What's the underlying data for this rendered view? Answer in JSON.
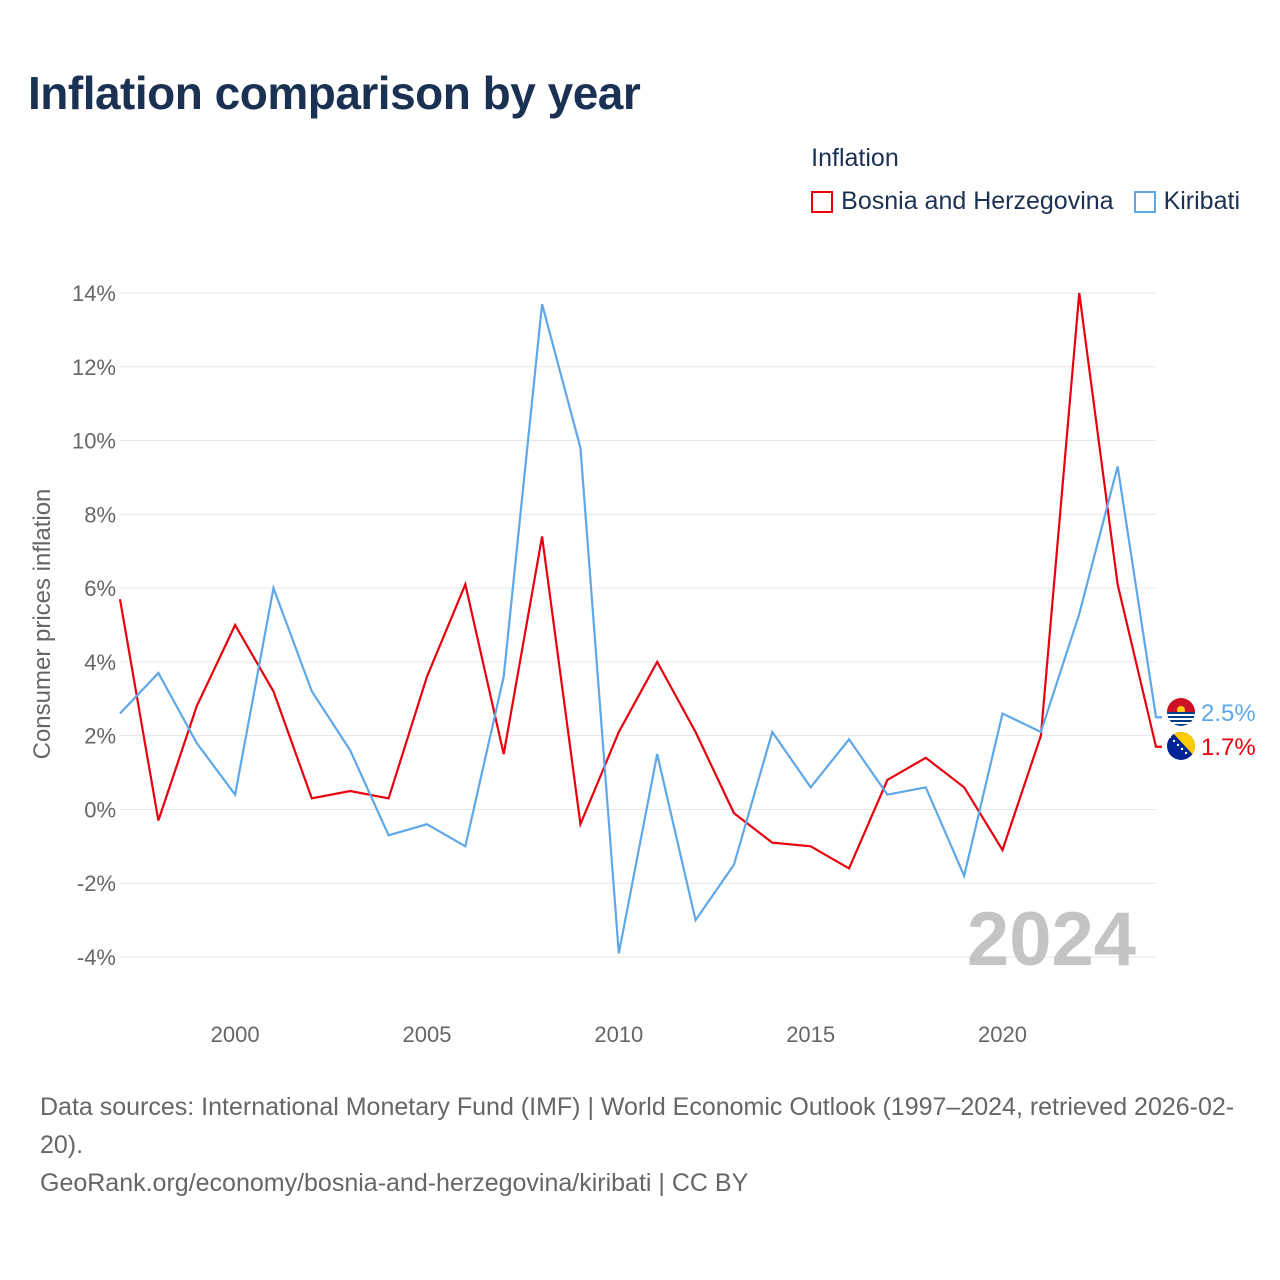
{
  "title": "Inflation comparison by year",
  "legend": {
    "title": "Inflation",
    "items": [
      {
        "label": "Bosnia and Herzegovina",
        "color": "#e8000d"
      },
      {
        "label": "Kiribati",
        "color": "#5fa8e8"
      }
    ]
  },
  "chart_data": {
    "type": "line",
    "title": "Inflation comparison by year",
    "xlabel": "",
    "ylabel": "Consumer prices inflation",
    "x": [
      1997,
      1998,
      1999,
      2000,
      2001,
      2002,
      2003,
      2004,
      2005,
      2006,
      2007,
      2008,
      2009,
      2010,
      2011,
      2012,
      2013,
      2014,
      2015,
      2016,
      2017,
      2018,
      2019,
      2020,
      2021,
      2022,
      2023,
      2024
    ],
    "xlim": [
      1997,
      2024
    ],
    "ylim": [
      -4,
      14
    ],
    "x_ticks": [
      2000,
      2005,
      2010,
      2015,
      2020
    ],
    "y_ticks": [
      -4,
      -2,
      0,
      2,
      4,
      6,
      8,
      10,
      12,
      14
    ],
    "y_tick_labels": [
      "-4%",
      "-2%",
      "0%",
      "2%",
      "4%",
      "6%",
      "8%",
      "10%",
      "12%",
      "14%"
    ],
    "grid": true,
    "legend_position": "top-right",
    "year_watermark": "2024",
    "series": [
      {
        "name": "Bosnia and Herzegovina",
        "color": "#e8000d",
        "values": [
          5.7,
          -0.3,
          2.8,
          5.0,
          3.2,
          0.3,
          0.5,
          0.3,
          3.6,
          6.1,
          1.5,
          7.4,
          -0.4,
          2.1,
          4.0,
          2.1,
          -0.1,
          -0.9,
          -1.0,
          -1.6,
          0.8,
          1.4,
          0.6,
          -1.1,
          2.0,
          14.0,
          6.1,
          1.7
        ],
        "end_label": "1.7%",
        "flag_icon": "bosnia-herzegovina-flag-icon"
      },
      {
        "name": "Kiribati",
        "color": "#5fa8e8",
        "values": [
          2.6,
          3.7,
          1.8,
          0.4,
          6.0,
          3.2,
          1.6,
          -0.7,
          -0.4,
          -1.0,
          3.6,
          13.7,
          9.8,
          -3.9,
          1.5,
          -3.0,
          -1.5,
          2.1,
          0.6,
          1.9,
          0.4,
          0.6,
          -1.8,
          2.6,
          2.1,
          5.3,
          9.3,
          2.5
        ],
        "end_label": "2.5%",
        "flag_icon": "kiribati-flag-icon"
      }
    ]
  },
  "footer": {
    "sources": "Data sources: International Monetary Fund (IMF) | World Economic Outlook (1997–2024, retrieved 2026-02-20).",
    "link": "GeoRank.org/economy/bosnia-and-herzegovina/kiribati | CC BY"
  }
}
